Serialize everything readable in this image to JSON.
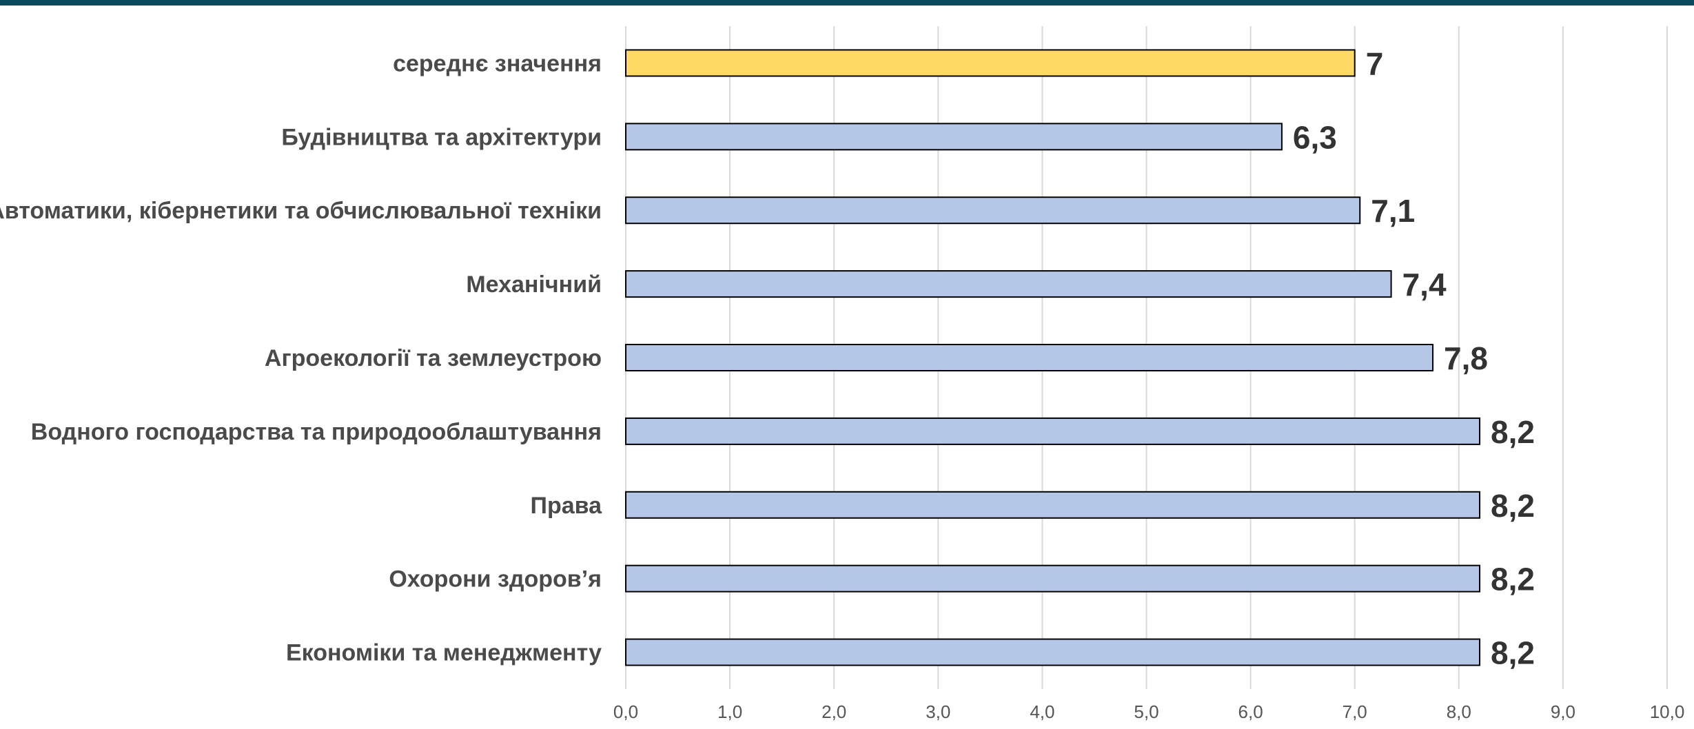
{
  "chart_data": {
    "type": "bar",
    "orientation": "horizontal",
    "title": "",
    "xlabel": "",
    "ylabel": "",
    "xlim": [
      0,
      10
    ],
    "x_ticks": [
      "0,0",
      "1,0",
      "2,0",
      "3,0",
      "4,0",
      "5,0",
      "6,0",
      "7,0",
      "8,0",
      "9,0",
      "10,0"
    ],
    "grid": "vertical",
    "legend": "none",
    "categories": [
      "середнє значення",
      "Будівництва та архітектури",
      "Автоматики, кібернетики та обчислювальної техніки",
      "Механічний",
      "Агроекології та землеустрою",
      "Водного господарства та природооблаштування",
      "Права",
      "Охорони здоров’я",
      "Економіки та менеджменту"
    ],
    "values": [
      7,
      6.3,
      7.05,
      7.35,
      7.75,
      8.2,
      8.2,
      8.2,
      8.2
    ],
    "value_labels": [
      "7",
      "6,3",
      "7,1",
      "7,4",
      "7,8",
      "8,2",
      "8,2",
      "8,2",
      "8,2"
    ],
    "colors": {
      "highlight": "#ffd966",
      "bar": "#b4c7e7",
      "bar_border": "#000000",
      "grid": "#d9d9d9",
      "top_bar": "#0b4a5e"
    }
  }
}
